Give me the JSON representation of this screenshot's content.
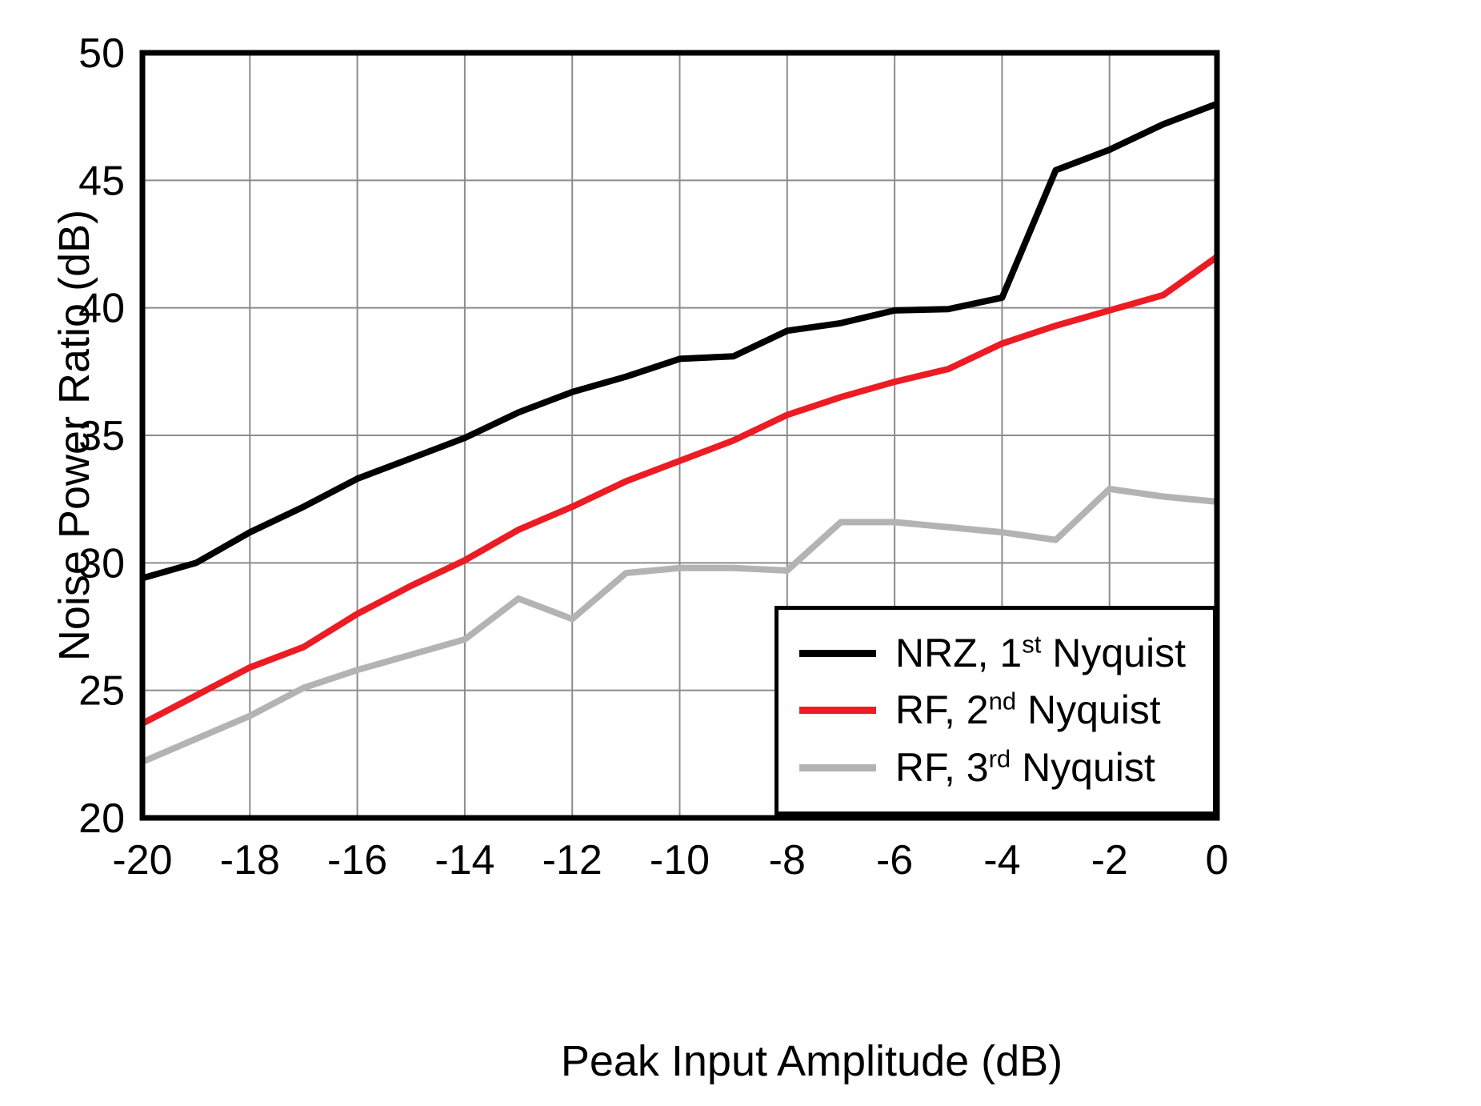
{
  "chart_data": {
    "type": "line",
    "title": "",
    "xlabel": "Peak Input Amplitude (dB)",
    "ylabel": "Noise Power Ratio (dB)",
    "xlim": [
      -20,
      0
    ],
    "ylim": [
      20,
      50
    ],
    "x_ticks": [
      -20,
      -18,
      -16,
      -14,
      -12,
      -10,
      -8,
      -6,
      -4,
      -2,
      0
    ],
    "y_ticks": [
      20,
      25,
      30,
      35,
      40,
      45,
      50
    ],
    "grid": true,
    "legend_position": "bottom-right",
    "x": [
      -20,
      -19,
      -18,
      -17,
      -16,
      -15,
      -14,
      -13,
      -12,
      -11,
      -10,
      -9,
      -8,
      -7,
      -6,
      -5,
      -4,
      -3,
      -2,
      -1,
      0
    ],
    "series": [
      {
        "name": "NRZ, 1st Nyquist",
        "color": "#000000",
        "values": [
          29.4,
          30.0,
          31.2,
          32.2,
          33.3,
          34.1,
          34.9,
          35.9,
          36.7,
          37.3,
          38.0,
          38.1,
          39.1,
          39.4,
          39.9,
          39.95,
          40.4,
          45.4,
          46.2,
          47.2,
          48.0
        ]
      },
      {
        "name": "RF, 2nd Nyquist",
        "color": "#ec1c24",
        "values": [
          23.7,
          24.8,
          25.9,
          26.7,
          28.0,
          29.1,
          30.1,
          31.3,
          32.2,
          33.2,
          34.0,
          34.8,
          35.8,
          36.5,
          37.1,
          37.6,
          38.6,
          39.3,
          39.9,
          40.5,
          42.0
        ]
      },
      {
        "name": "RF, 3rd Nyquist",
        "color": "#b3b3b3",
        "values": [
          22.2,
          23.1,
          24.0,
          25.1,
          25.8,
          26.4,
          27.0,
          28.6,
          27.8,
          29.6,
          29.8,
          29.8,
          29.7,
          31.6,
          31.6,
          31.4,
          31.2,
          30.9,
          32.9,
          32.6,
          32.4
        ]
      }
    ],
    "legend": [
      {
        "prefix": "NRZ, 1",
        "sup": "st",
        "suffix": " Nyquist",
        "color": "#000000"
      },
      {
        "prefix": "RF, 2",
        "sup": "nd",
        "suffix": " Nyquist",
        "color": "#ec1c24"
      },
      {
        "prefix": "RF, 3",
        "sup": "rd",
        "suffix": " Nyquist",
        "color": "#b3b3b3"
      }
    ],
    "colors": {
      "grid": "#8c8c8c",
      "border": "#000000",
      "background": "#ffffff"
    }
  }
}
